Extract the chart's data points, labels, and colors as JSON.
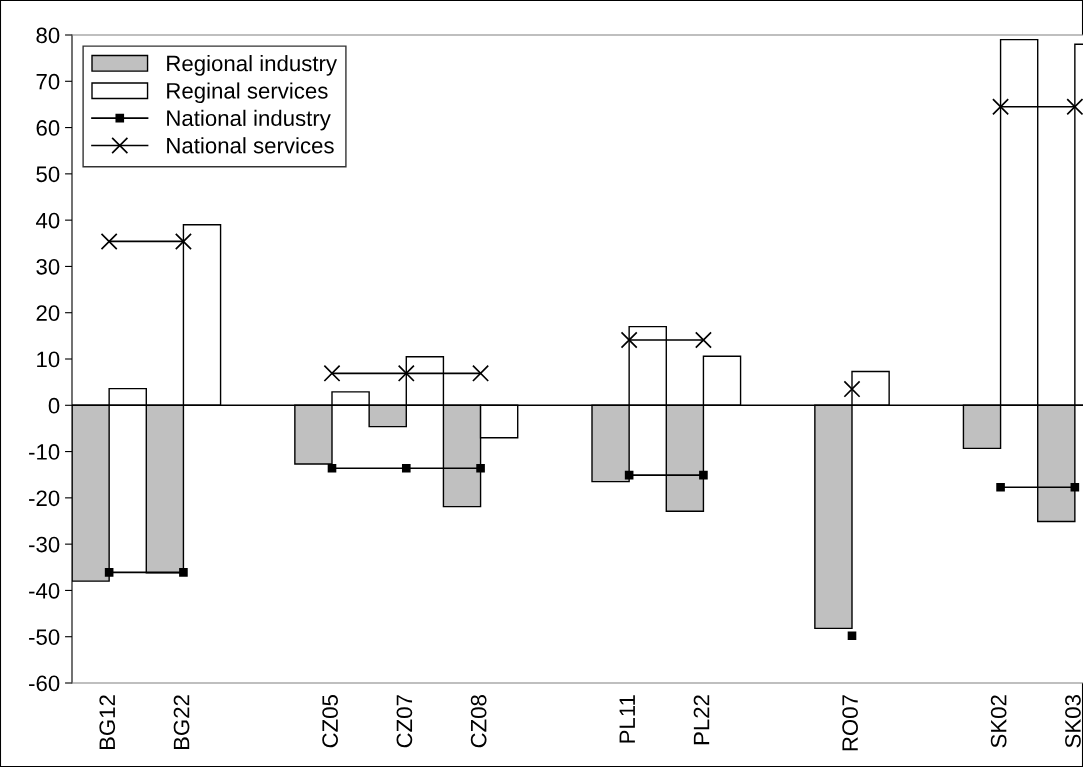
{
  "chart_data": {
    "type": "bar",
    "categories": [
      "BG12",
      "BG22",
      null,
      "CZ05",
      "CZ07",
      "CZ08",
      null,
      "PL11",
      "PL22",
      null,
      "RO07",
      null,
      "SK02",
      "SK03"
    ],
    "series": [
      {
        "name": "Regional industry",
        "color": "#c0c0c0",
        "values": [
          -38,
          -36.2,
          null,
          -12.7,
          -4.6,
          -21.9,
          null,
          -16.5,
          -22.9,
          null,
          -48.2,
          null,
          -9.3,
          -25.1
        ]
      },
      {
        "name": "Reginal services",
        "color": "#ffffff",
        "values": [
          3.6,
          39,
          null,
          2.9,
          10.5,
          -7,
          null,
          17,
          10.6,
          null,
          7.3,
          null,
          79,
          78
        ]
      },
      {
        "name": "National industry",
        "type": "line",
        "color": "#000000",
        "marker": "square",
        "values": [
          -36.1,
          -36.1,
          null,
          -13.6,
          -13.6,
          -13.6,
          null,
          -15.1,
          -15.1,
          null,
          -49.8,
          null,
          -17.7,
          -17.7
        ]
      },
      {
        "name": "National services",
        "type": "line",
        "color": "#000000",
        "marker": "cross",
        "values": [
          35.4,
          35.4,
          null,
          6.9,
          6.9,
          6.9,
          null,
          14.1,
          14.1,
          null,
          3.5,
          null,
          64.5,
          64.5
        ]
      }
    ],
    "ylim": [
      -60,
      80
    ],
    "yticks": [
      -60,
      -50,
      -40,
      -30,
      -20,
      -10,
      0,
      10,
      20,
      30,
      40,
      50,
      60,
      70,
      80
    ],
    "ref_lines": [
      {
        "axis": "y",
        "value": 0,
        "color": "#000000"
      }
    ],
    "grid": false,
    "legend": "top left"
  }
}
